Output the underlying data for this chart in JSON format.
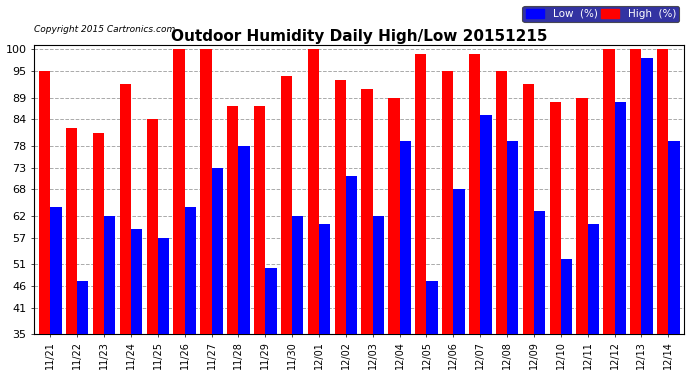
{
  "title": "Outdoor Humidity Daily High/Low 20151215",
  "copyright": "Copyright 2015 Cartronics.com",
  "categories": [
    "11/21",
    "11/22",
    "11/23",
    "11/24",
    "11/25",
    "11/26",
    "11/27",
    "11/28",
    "11/29",
    "11/30",
    "12/01",
    "12/02",
    "12/03",
    "12/04",
    "12/05",
    "12/06",
    "12/07",
    "12/08",
    "12/09",
    "12/10",
    "12/11",
    "12/12",
    "12/13",
    "12/14"
  ],
  "high": [
    95,
    82,
    81,
    92,
    84,
    100,
    100,
    87,
    87,
    94,
    100,
    93,
    91,
    89,
    99,
    95,
    99,
    95,
    92,
    88,
    89,
    100,
    100,
    100
  ],
  "low": [
    64,
    47,
    62,
    59,
    57,
    64,
    73,
    78,
    50,
    62,
    60,
    71,
    62,
    79,
    47,
    68,
    85,
    79,
    63,
    52,
    60,
    88,
    98,
    79
  ],
  "high_color": "#ff0000",
  "low_color": "#0000ff",
  "bg_color": "#ffffff",
  "grid_color": "#aaaaaa",
  "yticks": [
    35,
    41,
    46,
    51,
    57,
    62,
    68,
    73,
    78,
    84,
    89,
    95,
    100
  ],
  "ymin": 35,
  "ymax": 101,
  "title_fontsize": 11,
  "legend_low_label": "Low  (%)",
  "legend_high_label": "High  (%)"
}
